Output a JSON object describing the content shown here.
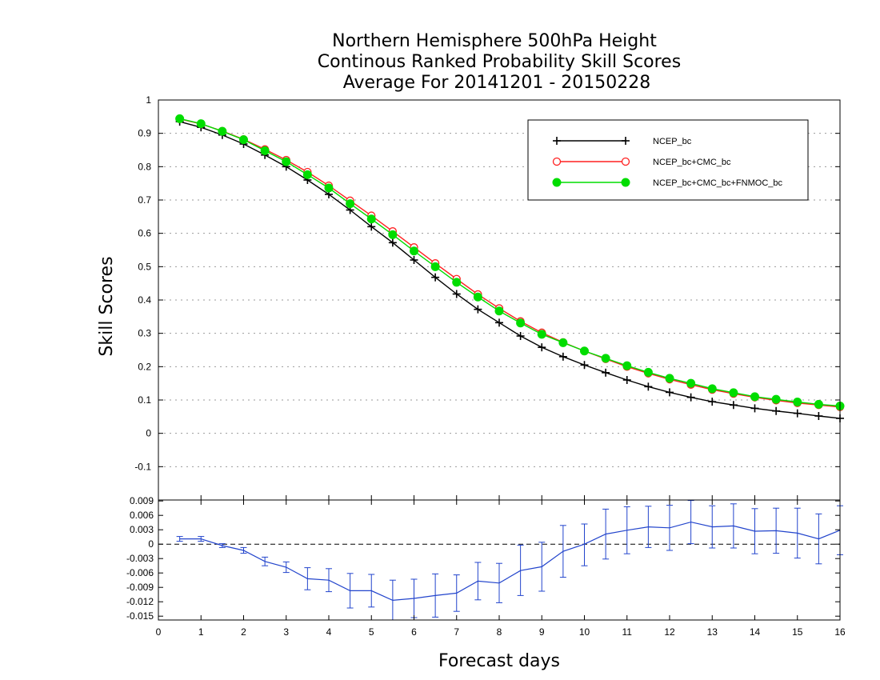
{
  "chart_data": [
    {
      "type": "line",
      "title": [
        "Northern Hemisphere 500hPa Height",
        "Continous Ranked Probability Skill Scores",
        "Average For 20141201 - 20150228"
      ],
      "xlabel": "Forecast days",
      "ylabel": "Skill Scores",
      "xlim": [
        0,
        16
      ],
      "ylim": [
        -0.2,
        1
      ],
      "x_ticks": [
        "0",
        "1",
        "2",
        "3",
        "4",
        "5",
        "6",
        "7",
        "8",
        "9",
        "10",
        "11",
        "12",
        "13",
        "14",
        "15",
        "16"
      ],
      "y_ticks": [
        "-0.1",
        "0",
        "0.1",
        "0.2",
        "0.3",
        "0.4",
        "0.5",
        "0.6",
        "0.7",
        "0.8",
        "0.9",
        "1"
      ],
      "y_tick_values": [
        -0.1,
        0,
        0.1,
        0.2,
        0.3,
        0.4,
        0.5,
        0.6,
        0.7,
        0.8,
        0.9,
        1
      ],
      "grid": true,
      "legend_position": "top-right",
      "x": [
        0.5,
        1,
        1.5,
        2,
        2.5,
        3,
        3.5,
        4,
        4.5,
        5,
        5.5,
        6,
        6.5,
        7,
        7.5,
        8,
        8.5,
        9,
        9.5,
        10,
        10.5,
        11,
        11.5,
        12,
        12.5,
        13,
        13.5,
        14,
        14.5,
        15,
        15.5,
        16
      ],
      "series": [
        {
          "name": "NCEP_bc",
          "color": "#000000",
          "marker": "plus",
          "values": [
            0.935,
            0.918,
            0.895,
            0.868,
            0.835,
            0.8,
            0.76,
            0.717,
            0.67,
            0.62,
            0.572,
            0.52,
            0.468,
            0.418,
            0.372,
            0.332,
            0.292,
            0.258,
            0.23,
            0.205,
            0.182,
            0.16,
            0.14,
            0.123,
            0.108,
            0.095,
            0.085,
            0.075,
            0.067,
            0.06,
            0.052,
            0.045
          ]
        },
        {
          "name": "NCEP_bc+CMC_bc",
          "color": "#ff2020",
          "marker": "open-circle",
          "values": [
            0.943,
            0.928,
            0.907,
            0.882,
            0.852,
            0.82,
            0.784,
            0.743,
            0.698,
            0.653,
            0.606,
            0.558,
            0.51,
            0.463,
            0.417,
            0.375,
            0.336,
            0.302,
            0.273,
            0.247,
            0.223,
            0.2,
            0.18,
            0.162,
            0.146,
            0.131,
            0.119,
            0.108,
            0.099,
            0.091,
            0.085,
            0.079
          ]
        },
        {
          "name": "NCEP_bc+CMC_bc+FNMOC_bc",
          "color": "#00dd00",
          "marker": "filled-circle",
          "values": [
            0.944,
            0.929,
            0.906,
            0.881,
            0.848,
            0.815,
            0.776,
            0.736,
            0.689,
            0.643,
            0.596,
            0.547,
            0.5,
            0.453,
            0.409,
            0.367,
            0.331,
            0.297,
            0.272,
            0.247,
            0.225,
            0.203,
            0.183,
            0.165,
            0.15,
            0.134,
            0.122,
            0.11,
            0.102,
            0.094,
            0.087,
            0.082
          ]
        }
      ]
    },
    {
      "type": "line",
      "xlabel": "Forecast days",
      "xlim": [
        0,
        16
      ],
      "ylim": [
        -0.0158,
        0.0092
      ],
      "x_ticks": [
        "0",
        "1",
        "2",
        "3",
        "4",
        "5",
        "6",
        "7",
        "8",
        "9",
        "10",
        "11",
        "12",
        "13",
        "14",
        "15",
        "16"
      ],
      "y_ticks": [
        "-0.015",
        "-0.012",
        "-0.009",
        "-0.006",
        "-0.003",
        "0",
        "0.003",
        "0.006",
        "0.009"
      ],
      "y_tick_values": [
        -0.015,
        -0.012,
        -0.009,
        -0.006,
        -0.003,
        0,
        0.003,
        0.006,
        0.009
      ],
      "zero_line": true,
      "x": [
        0.5,
        1,
        1.5,
        2,
        2.5,
        3,
        3.5,
        4,
        4.5,
        5,
        5.5,
        6,
        6.5,
        7,
        7.5,
        8,
        8.5,
        9,
        9.5,
        10,
        10.5,
        11,
        11.5,
        12,
        12.5,
        13,
        13.5,
        14,
        14.5,
        15,
        15.5,
        16
      ],
      "series": [
        {
          "color": "#2244cc",
          "values": [
            0.0011,
            0.0011,
            -0.0003,
            -0.0013,
            -0.0036,
            -0.0048,
            -0.0072,
            -0.0075,
            -0.0097,
            -0.0097,
            -0.0117,
            -0.0113,
            -0.0107,
            -0.0102,
            -0.0077,
            -0.0081,
            -0.0055,
            -0.0047,
            -0.0015,
            0.0,
            0.0021,
            0.0029,
            0.0036,
            0.0034,
            0.0046,
            0.0036,
            0.0038,
            0.0027,
            0.0028,
            0.0023,
            0.0011,
            0.0029
          ],
          "error_low": [
            0.0006,
            0.0006,
            -0.0007,
            -0.0019,
            -0.0045,
            -0.0059,
            -0.0095,
            -0.0099,
            -0.0133,
            -0.0131,
            -0.0159,
            -0.0153,
            -0.0152,
            -0.014,
            -0.0116,
            -0.0122,
            -0.0107,
            -0.0098,
            -0.0069,
            -0.0045,
            -0.0031,
            -0.002,
            -0.0007,
            -0.0013,
            0.0001,
            -0.0008,
            -0.0008,
            -0.002,
            -0.0019,
            -0.0029,
            -0.0041,
            -0.0022
          ],
          "error_high": [
            0.0016,
            0.0016,
            0.0001,
            -0.0007,
            -0.0027,
            -0.0037,
            -0.0049,
            -0.0051,
            -0.0061,
            -0.0063,
            -0.0075,
            -0.0073,
            -0.0062,
            -0.0064,
            -0.0038,
            -0.004,
            -0.0002,
            0.0004,
            0.0039,
            0.0042,
            0.0073,
            0.0078,
            0.0079,
            0.0081,
            0.0091,
            0.008,
            0.0084,
            0.0074,
            0.0075,
            0.0075,
            0.0063,
            0.008
          ]
        }
      ]
    }
  ]
}
